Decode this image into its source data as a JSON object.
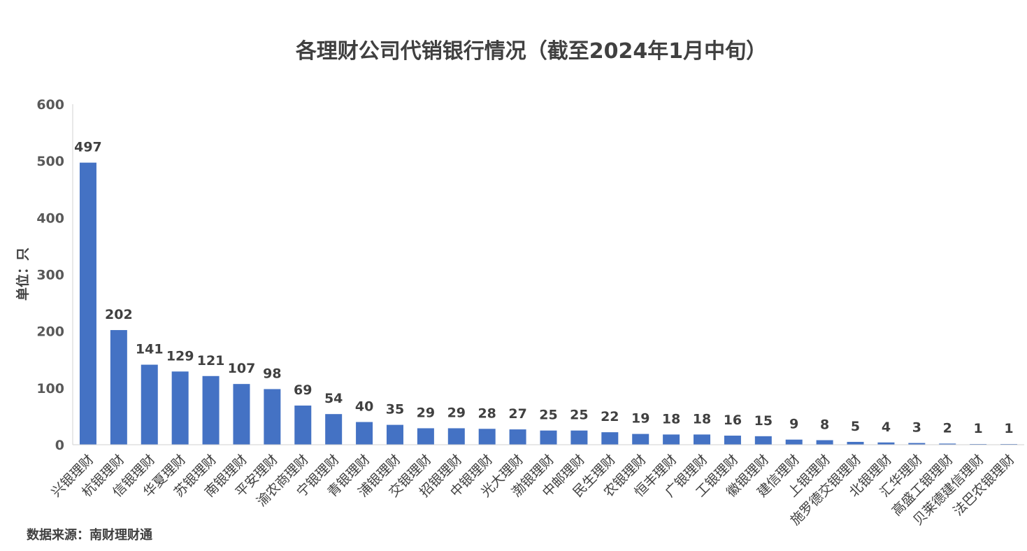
{
  "chart_data": {
    "type": "bar",
    "title": "各理财公司代销银行情况（截至2024年1月中旬）",
    "ylabel": "单位：只",
    "xlabel": "",
    "ylim": [
      0,
      600
    ],
    "yticks": [
      0,
      100,
      200,
      300,
      400,
      500,
      600
    ],
    "grid": false,
    "legend": "none",
    "bar_color": "#4472C4",
    "categories": [
      "兴银理财",
      "杭银理财",
      "信银理财",
      "华夏理财",
      "苏银理财",
      "南银理财",
      "平安理财",
      "渝农商理财",
      "宁银理财",
      "青银理财",
      "浦银理财",
      "交银理财",
      "招银理财",
      "中银理财",
      "光大理财",
      "渤银理财",
      "中邮理财",
      "民生理财",
      "农银理财",
      "恒丰理财",
      "广银理财",
      "工银理财",
      "徽银理财",
      "建信理财",
      "上银理财",
      "施罗德交银理财",
      "北银理财",
      "汇华理财",
      "高盛工银理财",
      "贝莱德建信理财",
      "法巴农银理财"
    ],
    "values": [
      497,
      202,
      141,
      129,
      121,
      107,
      98,
      69,
      54,
      40,
      35,
      29,
      29,
      28,
      27,
      25,
      25,
      22,
      19,
      18,
      18,
      16,
      15,
      9,
      8,
      5,
      4,
      3,
      2,
      1,
      1
    ]
  },
  "source": "数据来源：南财理财通"
}
